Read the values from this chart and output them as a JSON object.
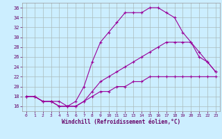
{
  "xlabel": "Windchill (Refroidissement éolien,°C)",
  "ylabel": "",
  "bg_color": "#cceeff",
  "line_color": "#990099",
  "grid_color": "#aabbbb",
  "xlim": [
    -0.5,
    23.5
  ],
  "ylim": [
    15,
    37
  ],
  "xticks": [
    0,
    1,
    2,
    3,
    4,
    5,
    6,
    7,
    8,
    9,
    10,
    11,
    12,
    13,
    14,
    15,
    16,
    17,
    18,
    19,
    20,
    21,
    22,
    23
  ],
  "yticks": [
    16,
    18,
    20,
    22,
    24,
    26,
    28,
    30,
    32,
    34,
    36
  ],
  "line1_x": [
    0,
    1,
    2,
    3,
    4,
    5,
    6,
    7,
    8,
    9,
    10,
    11,
    12,
    13,
    14,
    15,
    16,
    17,
    18,
    19,
    20,
    21,
    22,
    23
  ],
  "line1_y": [
    18,
    18,
    17,
    17,
    17,
    16,
    17,
    20,
    25,
    29,
    31,
    33,
    35,
    35,
    35,
    36,
    36,
    35,
    34,
    31,
    29,
    26,
    25,
    23
  ],
  "line2_x": [
    0,
    1,
    2,
    3,
    4,
    5,
    6,
    7,
    8,
    9,
    10,
    11,
    12,
    13,
    14,
    15,
    16,
    17,
    18,
    19,
    20,
    21,
    22,
    23
  ],
  "line2_y": [
    18,
    18,
    17,
    17,
    16,
    16,
    16,
    17,
    19,
    21,
    22,
    23,
    24,
    25,
    26,
    27,
    28,
    29,
    29,
    29,
    29,
    27,
    25,
    23
  ],
  "line3_x": [
    0,
    1,
    2,
    3,
    4,
    5,
    6,
    7,
    8,
    9,
    10,
    11,
    12,
    13,
    14,
    15,
    16,
    17,
    18,
    19,
    20,
    21,
    22,
    23
  ],
  "line3_y": [
    18,
    18,
    17,
    17,
    16,
    16,
    16,
    17,
    18,
    19,
    19,
    20,
    20,
    21,
    21,
    22,
    22,
    22,
    22,
    22,
    22,
    22,
    22,
    22
  ]
}
